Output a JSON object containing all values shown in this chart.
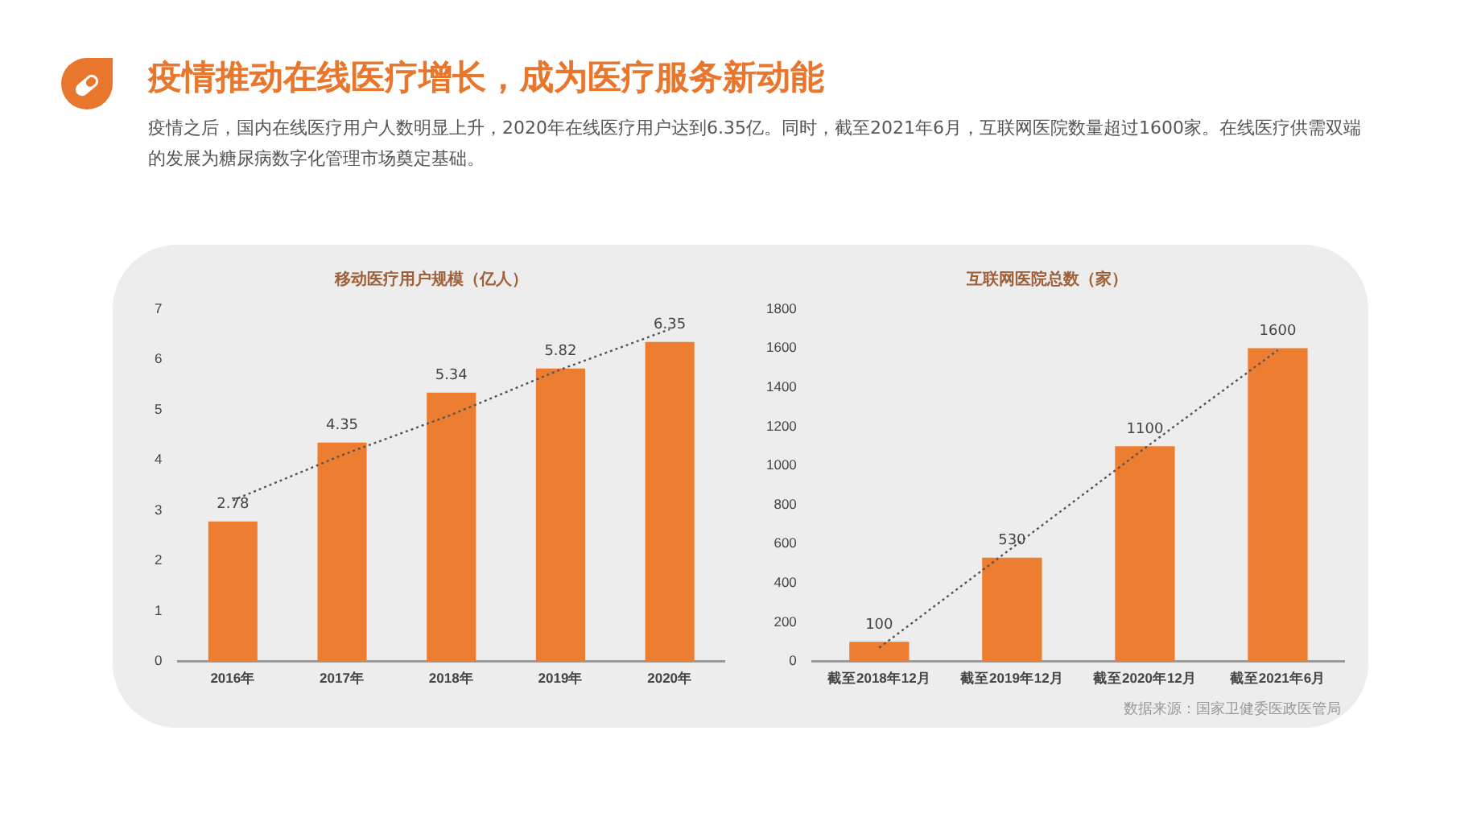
{
  "chart_data": [
    {
      "type": "other",
      "title": "疫情推动在线医疗增长，成为医疗服务新动能",
      "subtitle": "疫情之后，国内在线医疗用户人数明显上升，2020年在线医疗用户达到6.35亿。同时，截至2021年6月，互联网医院数量超过1600家。在线医疗供需双端的发展为糖尿病数字化管理市场奠定基础。"
    },
    {
      "type": "bar",
      "title": "移动医疗用户规模（亿人）",
      "categories": [
        "2016年",
        "2017年",
        "2018年",
        "2019年",
        "2020年"
      ],
      "series": [
        {
          "type": "bar",
          "color": "#ed7d31",
          "values": [
            2.78,
            4.35,
            5.34,
            5.82,
            6.35
          ],
          "value_labels": [
            "2.78",
            "4.35",
            "5.34",
            "5.82",
            "6.35"
          ]
        },
        {
          "type": "line",
          "color": "#555555",
          "line_style": "dotted",
          "marker": "none",
          "values": [
            3.2,
            4.1,
            4.9,
            5.8,
            6.6
          ]
        }
      ],
      "ylim": [
        0,
        7
      ],
      "yticks": [
        0,
        1,
        2,
        3,
        4,
        5,
        6,
        7
      ],
      "grid": false,
      "legend": false
    },
    {
      "type": "bar",
      "title": "互联网医院总数（家）",
      "categories": [
        "截至2018年12月",
        "截至2019年12月",
        "截至2020年12月",
        "截至2021年6月"
      ],
      "series": [
        {
          "type": "bar",
          "color": "#ed7d31",
          "values": [
            100,
            530,
            1100,
            1600
          ],
          "value_labels": [
            "100",
            "530",
            "1100",
            "1600"
          ]
        },
        {
          "type": "line",
          "color": "#555555",
          "line_style": "dotted",
          "marker": "none",
          "values": [
            70,
            580,
            1090,
            1590
          ]
        }
      ],
      "ylim": [
        0,
        1800
      ],
      "yticks": [
        0,
        200,
        400,
        600,
        800,
        1000,
        1200,
        1400,
        1600,
        1800
      ],
      "grid": false,
      "legend": false,
      "annotations": [
        "数据来源：国家卫健委医政医管局"
      ]
    }
  ]
}
